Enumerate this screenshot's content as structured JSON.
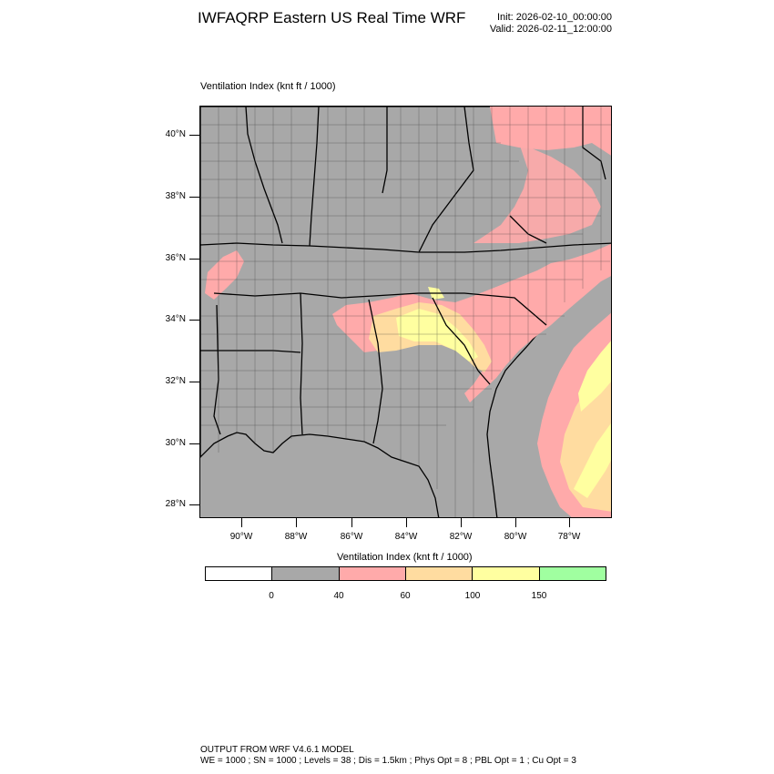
{
  "header": {
    "title": "IWFAQRP Eastern US Real Time WRF",
    "init": "Init: 2026-02-10_00:00:00",
    "valid": "Valid: 2026-02-11_12:00:00"
  },
  "map": {
    "subtitle": "Ventilation Index   (knt ft / 1000)",
    "lat_labels": [
      "40°N",
      "38°N",
      "36°N",
      "34°N",
      "32°N",
      "30°N",
      "28°N"
    ],
    "lon_labels": [
      "90°W",
      "88°W",
      "86°W",
      "84°W",
      "82°W",
      "80°W",
      "78°W"
    ],
    "colors": {
      "land_below_40": "#a8a8a8",
      "band_40_60": "#ffaaaa",
      "band_60_100": "#ffdca0",
      "band_100_150": "#ffffa0",
      "band_150_plus": "#a0ffa0"
    }
  },
  "colorbar": {
    "title": "Ventilation Index  (knt ft / 1000)",
    "labels": [
      "0",
      "40",
      "60",
      "100",
      "150"
    ],
    "colors": [
      "#ffffff",
      "#a8a8a8",
      "#ffaaaa",
      "#ffdca0",
      "#ffffa0",
      "#a0ffa0"
    ]
  },
  "footer": {
    "line1": "OUTPUT FROM WRF V4.6.1 MODEL",
    "line2": "WE = 1000 ; SN = 1000 ; Levels = 38 ; Dis = 1.5km ; Phys Opt = 8 ; PBL Opt = 1 ; Cu Opt = 3"
  }
}
